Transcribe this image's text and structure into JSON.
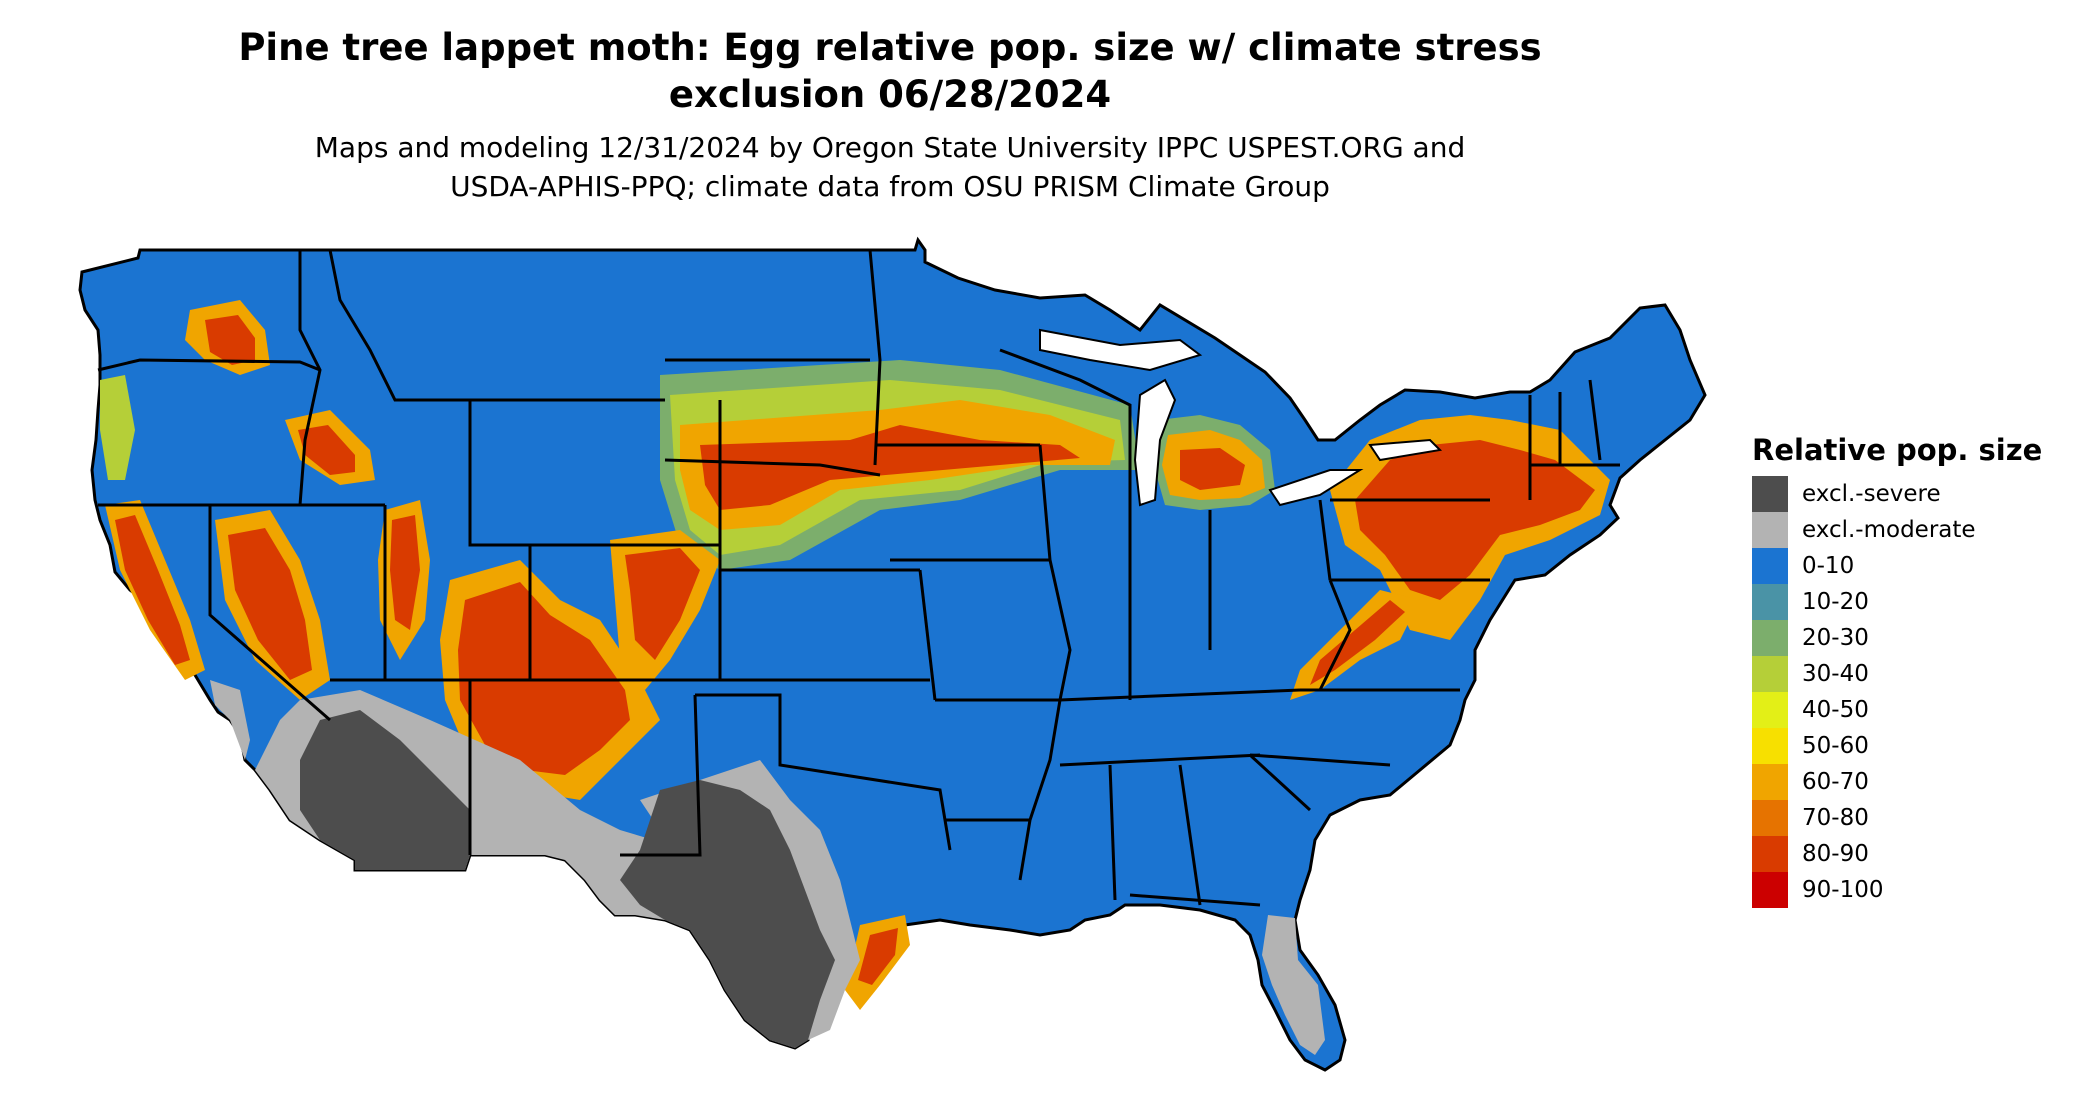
{
  "title_line1": "Pine tree lappet moth: Egg relative pop. size w/ climate stress",
  "title_line2": "exclusion 06/28/2024",
  "subtitle_line1": "Maps and modeling 12/31/2024 by Oregon State University IPPC USPEST.ORG and",
  "subtitle_line2": "USDA-APHIS-PPQ; climate data from OSU PRISM Climate Group",
  "colors": {
    "base": "#1b74d1",
    "border": "#000000"
  },
  "legend": {
    "title": "Relative pop. size",
    "items": [
      {
        "label": "excl.-severe",
        "color": "#4d4d4d"
      },
      {
        "label": "excl.-moderate",
        "color": "#b3b3b3"
      },
      {
        "label": "0-10",
        "color": "#1b74d1"
      },
      {
        "label": "10-20",
        "color": "#4a93a6"
      },
      {
        "label": "20-30",
        "color": "#7cae6c"
      },
      {
        "label": "30-40",
        "color": "#b5cf38"
      },
      {
        "label": "40-50",
        "color": "#e3ef17"
      },
      {
        "label": "50-60",
        "color": "#f7e000"
      },
      {
        "label": "60-70",
        "color": "#f0a500"
      },
      {
        "label": "70-80",
        "color": "#e67300"
      },
      {
        "label": "80-90",
        "color": "#d93b00"
      },
      {
        "label": "90-100",
        "color": "#cc0000"
      }
    ]
  }
}
